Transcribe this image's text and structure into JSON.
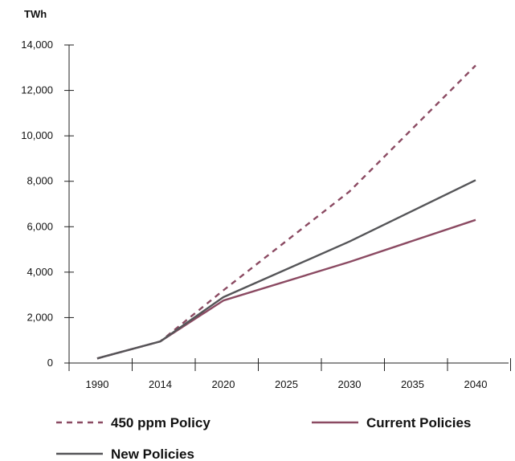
{
  "chart_data": {
    "type": "line",
    "ylabel": "TWh",
    "xlabel": "",
    "categories": [
      "1990",
      "2014",
      "2020",
      "2025",
      "2030",
      "2035",
      "2040"
    ],
    "y_ticks": [
      "0",
      "2,000",
      "4,000",
      "6,000",
      "8,000",
      "10,000",
      "12,000",
      "14,000"
    ],
    "ylim": [
      0,
      14000
    ],
    "grid": false,
    "legend_position": "bottom",
    "series": [
      {
        "name": "450 ppm Policy",
        "color": "#8b4a62",
        "style": "dashed",
        "values": [
          200,
          950,
          3200,
          null,
          7550,
          null,
          13100
        ]
      },
      {
        "name": "Current Policies",
        "color": "#8b4a62",
        "style": "solid",
        "values": [
          200,
          950,
          2750,
          null,
          4450,
          null,
          6300
        ]
      },
      {
        "name": "New Policies",
        "color": "#555558",
        "style": "solid",
        "values": [
          200,
          950,
          2900,
          null,
          5350,
          null,
          8050
        ]
      }
    ]
  }
}
